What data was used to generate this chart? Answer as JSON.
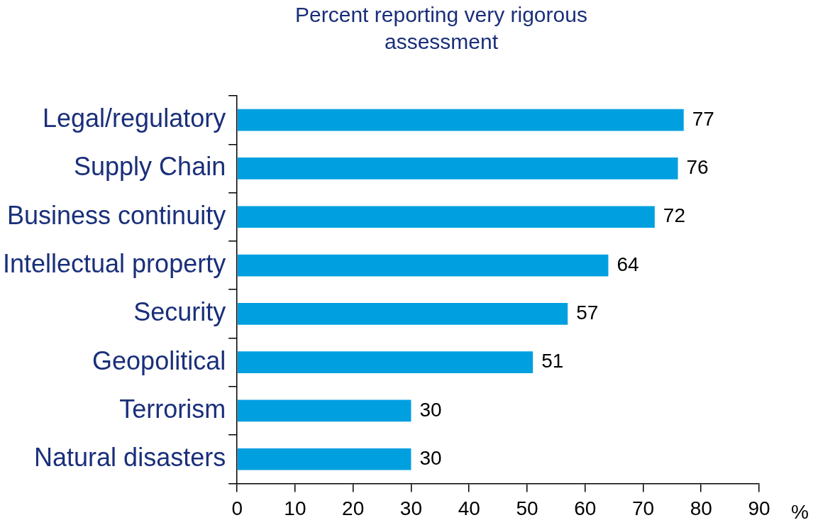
{
  "chart_data": {
    "type": "bar",
    "orientation": "horizontal",
    "title": "Percent reporting very rigorous assessment",
    "xlabel": "%",
    "categories": [
      "Legal/regulatory",
      "Supply Chain",
      "Business continuity",
      "Intellectual property",
      "Security",
      "Geopolitical",
      "Terrorism",
      "Natural disasters"
    ],
    "values": [
      77,
      76,
      72,
      64,
      57,
      51,
      30,
      30
    ],
    "color": "#00a0e0",
    "xlim": [
      0,
      90
    ],
    "xticks": [
      0,
      10,
      20,
      30,
      40,
      50,
      60,
      70,
      80,
      90
    ],
    "grid": false,
    "legend": false,
    "data_labels": true
  }
}
